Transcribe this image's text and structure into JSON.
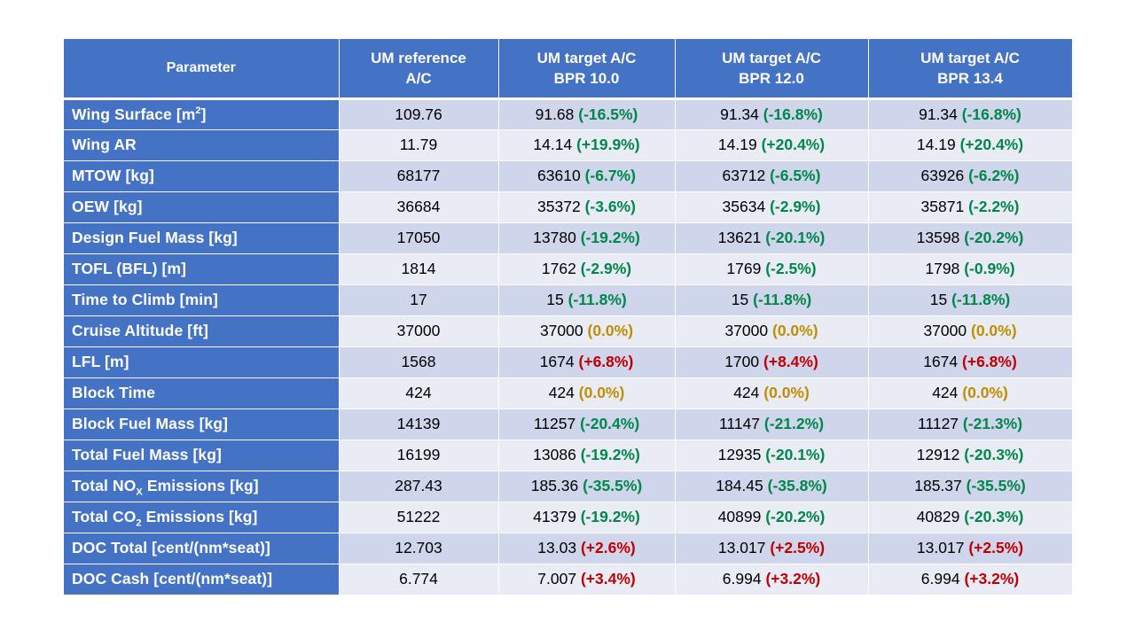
{
  "table": {
    "headers": [
      {
        "l1": "Parameter",
        "l2": ""
      },
      {
        "l1": "UM reference",
        "l2": "A/C"
      },
      {
        "l1": "UM target A/C",
        "l2": "BPR 10.0"
      },
      {
        "l1": "UM target A/C",
        "l2": "BPR 12.0"
      },
      {
        "l1": "UM target A/C",
        "l2": "BPR 13.4"
      }
    ],
    "rows": [
      {
        "name": {
          "pre": "Wing Surface [m",
          "sup": "2",
          "sub": "",
          "post": "]"
        },
        "ref": "109.76",
        "cells": [
          {
            "v": "91.68",
            "d": "(-16.5%)",
            "c": "green"
          },
          {
            "v": "91.34",
            "d": "(-16.8%)",
            "c": "green"
          },
          {
            "v": "91.34",
            "d": "(-16.8%)",
            "c": "green"
          }
        ]
      },
      {
        "name": {
          "pre": "Wing AR",
          "sup": "",
          "sub": "",
          "post": ""
        },
        "ref": "11.79",
        "cells": [
          {
            "v": "14.14",
            "d": "(+19.9%)",
            "c": "green"
          },
          {
            "v": "14.19",
            "d": "(+20.4%)",
            "c": "green"
          },
          {
            "v": "14.19",
            "d": "(+20.4%)",
            "c": "green"
          }
        ]
      },
      {
        "name": {
          "pre": "MTOW [kg]",
          "sup": "",
          "sub": "",
          "post": ""
        },
        "ref": "68177",
        "cells": [
          {
            "v": "63610",
            "d": "(-6.7%)",
            "c": "green"
          },
          {
            "v": "63712",
            "d": "(-6.5%)",
            "c": "green"
          },
          {
            "v": "63926",
            "d": "(-6.2%)",
            "c": "green"
          }
        ]
      },
      {
        "name": {
          "pre": "OEW [kg]",
          "sup": "",
          "sub": "",
          "post": ""
        },
        "ref": "36684",
        "cells": [
          {
            "v": "35372",
            "d": "(-3.6%)",
            "c": "green"
          },
          {
            "v": "35634",
            "d": "(-2.9%)",
            "c": "green"
          },
          {
            "v": "35871",
            "d": "(-2.2%)",
            "c": "green"
          }
        ]
      },
      {
        "name": {
          "pre": "Design Fuel Mass [kg]",
          "sup": "",
          "sub": "",
          "post": ""
        },
        "ref": "17050",
        "cells": [
          {
            "v": "13780",
            "d": "(-19.2%)",
            "c": "green"
          },
          {
            "v": "13621",
            "d": "(-20.1%)",
            "c": "green"
          },
          {
            "v": "13598",
            "d": "(-20.2%)",
            "c": "green"
          }
        ]
      },
      {
        "name": {
          "pre": "TOFL (BFL) [m]",
          "sup": "",
          "sub": "",
          "post": ""
        },
        "ref": "1814",
        "cells": [
          {
            "v": "1762",
            "d": "(-2.9%)",
            "c": "green"
          },
          {
            "v": "1769",
            "d": "(-2.5%)",
            "c": "green"
          },
          {
            "v": "1798",
            "d": "(-0.9%)",
            "c": "green"
          }
        ]
      },
      {
        "name": {
          "pre": "Time to Climb [min]",
          "sup": "",
          "sub": "",
          "post": ""
        },
        "ref": "17",
        "cells": [
          {
            "v": "15",
            "d": "(-11.8%)",
            "c": "green"
          },
          {
            "v": "15",
            "d": "(-11.8%)",
            "c": "green"
          },
          {
            "v": "15",
            "d": "(-11.8%)",
            "c": "green"
          }
        ]
      },
      {
        "name": {
          "pre": "Cruise Altitude [ft]",
          "sup": "",
          "sub": "",
          "post": ""
        },
        "ref": "37000",
        "cells": [
          {
            "v": "37000",
            "d": "(0.0%)",
            "c": "amber"
          },
          {
            "v": "37000",
            "d": "(0.0%)",
            "c": "amber"
          },
          {
            "v": "37000",
            "d": "(0.0%)",
            "c": "amber"
          }
        ]
      },
      {
        "name": {
          "pre": "LFL [m]",
          "sup": "",
          "sub": "",
          "post": ""
        },
        "ref": "1568",
        "cells": [
          {
            "v": "1674",
            "d": "(+6.8%)",
            "c": "red"
          },
          {
            "v": "1700",
            "d": "(+8.4%)",
            "c": "red"
          },
          {
            "v": "1674",
            "d": "(+6.8%)",
            "c": "red"
          }
        ]
      },
      {
        "name": {
          "pre": "Block Time",
          "sup": "",
          "sub": "",
          "post": ""
        },
        "ref": "424",
        "cells": [
          {
            "v": "424",
            "d": "(0.0%)",
            "c": "amber"
          },
          {
            "v": "424",
            "d": "(0.0%)",
            "c": "amber"
          },
          {
            "v": "424",
            "d": "(0.0%)",
            "c": "amber"
          }
        ]
      },
      {
        "name": {
          "pre": "Block Fuel Mass [kg]",
          "sup": "",
          "sub": "",
          "post": ""
        },
        "ref": "14139",
        "cells": [
          {
            "v": "11257",
            "d": "(-20.4%)",
            "c": "green"
          },
          {
            "v": "11147",
            "d": "(-21.2%)",
            "c": "green"
          },
          {
            "v": "11127",
            "d": "(-21.3%)",
            "c": "green"
          }
        ]
      },
      {
        "name": {
          "pre": "Total Fuel Mass [kg]",
          "sup": "",
          "sub": "",
          "post": ""
        },
        "ref": "16199",
        "cells": [
          {
            "v": "13086",
            "d": "(-19.2%)",
            "c": "green"
          },
          {
            "v": "12935",
            "d": "(-20.1%)",
            "c": "green"
          },
          {
            "v": "12912",
            "d": "(-20.3%)",
            "c": "green"
          }
        ]
      },
      {
        "name": {
          "pre": "Total NO",
          "sup": "",
          "sub": "X",
          "post": " Emissions [kg]"
        },
        "ref": "287.43",
        "cells": [
          {
            "v": "185.36",
            "d": "(-35.5%)",
            "c": "green"
          },
          {
            "v": "184.45",
            "d": "(-35.8%)",
            "c": "green"
          },
          {
            "v": "185.37",
            "d": "(-35.5%)",
            "c": "green"
          }
        ]
      },
      {
        "name": {
          "pre": "Total CO",
          "sup": "",
          "sub": "2",
          "post": " Emissions [kg]"
        },
        "ref": "51222",
        "cells": [
          {
            "v": "41379",
            "d": "(-19.2%)",
            "c": "green"
          },
          {
            "v": "40899",
            "d": "(-20.2%)",
            "c": "green"
          },
          {
            "v": "40829",
            "d": "(-20.3%)",
            "c": "green"
          }
        ]
      },
      {
        "name": {
          "pre": "DOC Total [cent/(nm*seat)]",
          "sup": "",
          "sub": "",
          "post": ""
        },
        "ref": "12.703",
        "cells": [
          {
            "v": "13.03",
            "d": "(+2.6%)",
            "c": "red"
          },
          {
            "v": "13.017",
            "d": "(+2.5%)",
            "c": "red"
          },
          {
            "v": "13.017",
            "d": "(+2.5%)",
            "c": "red"
          }
        ]
      },
      {
        "name": {
          "pre": "DOC Cash [cent/(nm*seat)]",
          "sup": "",
          "sub": "",
          "post": ""
        },
        "ref": "6.774",
        "cells": [
          {
            "v": "7.007",
            "d": "(+3.4%)",
            "c": "red"
          },
          {
            "v": "6.994",
            "d": "(+3.2%)",
            "c": "red"
          },
          {
            "v": "6.994",
            "d": "(+3.2%)",
            "c": "red"
          }
        ]
      }
    ]
  },
  "colors": {
    "header_bg": "#4472c4",
    "row_odd": "#cfd5ea",
    "row_even": "#e9ebf5",
    "positive_change": "#00874a",
    "negative_change": "#c00000",
    "neutral_change": "#bf8f00"
  }
}
